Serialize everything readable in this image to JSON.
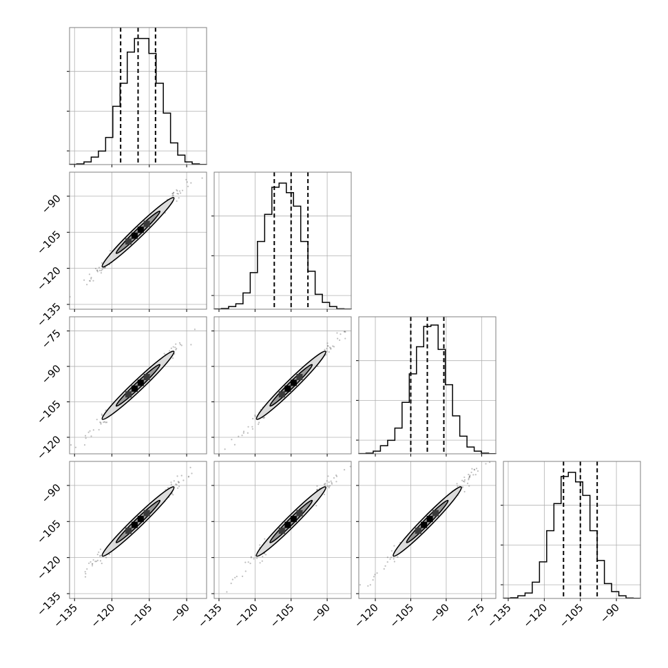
{
  "chart_data": {
    "type": "corner",
    "title": "",
    "parameters": [
      {
        "name": "",
        "quantiles": [
          -116.5,
          -109.5,
          -102.5
        ],
        "hist": [
          0.002,
          0.005,
          0.02,
          0.055,
          0.1,
          0.2,
          0.43,
          0.6,
          0.83,
          0.93,
          0.93,
          0.82,
          0.6,
          0.38,
          0.16,
          0.07,
          0.02,
          0.005,
          0.001
        ],
        "range": [
          -137,
          -82
        ],
        "ticks": [
          -135,
          -120,
          -105,
          -90
        ]
      },
      {
        "name": "",
        "quantiles": [
          -112,
          -105,
          -98
        ],
        "hist": [
          0.002,
          0.005,
          0.02,
          0.04,
          0.12,
          0.27,
          0.5,
          0.7,
          0.9,
          0.93,
          0.86,
          0.76,
          0.5,
          0.28,
          0.11,
          0.05,
          0.02,
          0.003,
          0.001
        ],
        "range": [
          -137,
          -80
        ],
        "ticks": [
          -135,
          -120,
          -105,
          -90
        ]
      },
      {
        "name": "",
        "quantiles": [
          -105,
          -98,
          -91
        ],
        "hist": [
          0.002,
          0.005,
          0.02,
          0.06,
          0.1,
          0.19,
          0.38,
          0.59,
          0.79,
          0.94,
          0.95,
          0.77,
          0.51,
          0.28,
          0.13,
          0.05,
          0.02,
          0.005,
          0.001
        ],
        "range": [
          -127,
          -69
        ],
        "ticks": [
          -120,
          -105,
          -90,
          -75
        ]
      },
      {
        "name": "",
        "quantiles": [
          -112,
          -105,
          -98
        ],
        "hist": [
          0.002,
          0.005,
          0.02,
          0.04,
          0.12,
          0.27,
          0.5,
          0.7,
          0.9,
          0.93,
          0.86,
          0.76,
          0.5,
          0.28,
          0.11,
          0.05,
          0.02,
          0.003,
          0.001
        ],
        "range": [
          -137,
          -80
        ],
        "ticks": [
          -135,
          -120,
          -105,
          -90
        ]
      }
    ],
    "correlation": 0.995,
    "contour_levels": [
      "1-sigma",
      "2-sigma"
    ],
    "grid": true,
    "tick_rotation_deg": 45,
    "colors": {
      "line": "#000000",
      "grid": "#b0b0b0",
      "frame": "#7f7f7f",
      "scatter": "#6e6e6e"
    }
  }
}
